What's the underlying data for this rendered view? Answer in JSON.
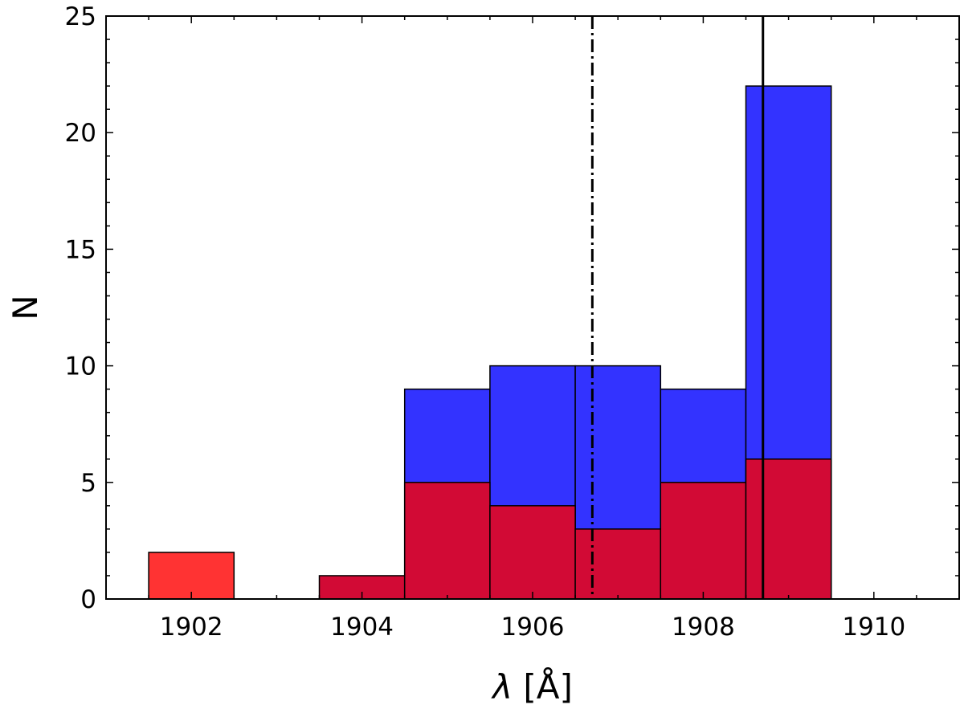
{
  "chart_data": {
    "type": "bar",
    "bin_width": 1,
    "xlabel": {
      "symbol": "λ",
      "unit": "[Å]"
    },
    "ylabel": "N",
    "xlim": [
      1901,
      1911
    ],
    "ylim": [
      0,
      25
    ],
    "x_ticks": [
      1902,
      1904,
      1906,
      1908,
      1910
    ],
    "y_ticks": [
      0,
      5,
      10,
      15,
      20,
      25
    ],
    "grid": false,
    "series": [
      {
        "color": "#3333ff",
        "bins": [
          {
            "start": 1904.5,
            "end": 1905.5,
            "value": 9
          },
          {
            "start": 1905.5,
            "end": 1906.5,
            "value": 10
          },
          {
            "start": 1906.5,
            "end": 1907.5,
            "value": 10
          },
          {
            "start": 1907.5,
            "end": 1908.5,
            "value": 9
          },
          {
            "start": 1908.5,
            "end": 1909.5,
            "value": 22
          }
        ]
      },
      {
        "color": "#d20a35",
        "bins": [
          {
            "start": 1903.5,
            "end": 1904.5,
            "value": 1
          },
          {
            "start": 1904.5,
            "end": 1905.5,
            "value": 5
          },
          {
            "start": 1905.5,
            "end": 1906.5,
            "value": 4
          },
          {
            "start": 1906.5,
            "end": 1907.5,
            "value": 3
          },
          {
            "start": 1907.5,
            "end": 1908.5,
            "value": 5
          },
          {
            "start": 1908.5,
            "end": 1909.5,
            "value": 6
          }
        ]
      },
      {
        "color": "#ff3333",
        "bins": [
          {
            "start": 1901.5,
            "end": 1902.5,
            "value": 2
          }
        ]
      }
    ],
    "vertical_lines": [
      {
        "x": 1906.7,
        "style": "dashdot",
        "color": "#000000"
      },
      {
        "x": 1908.7,
        "style": "solid",
        "color": "#000000"
      }
    ]
  }
}
